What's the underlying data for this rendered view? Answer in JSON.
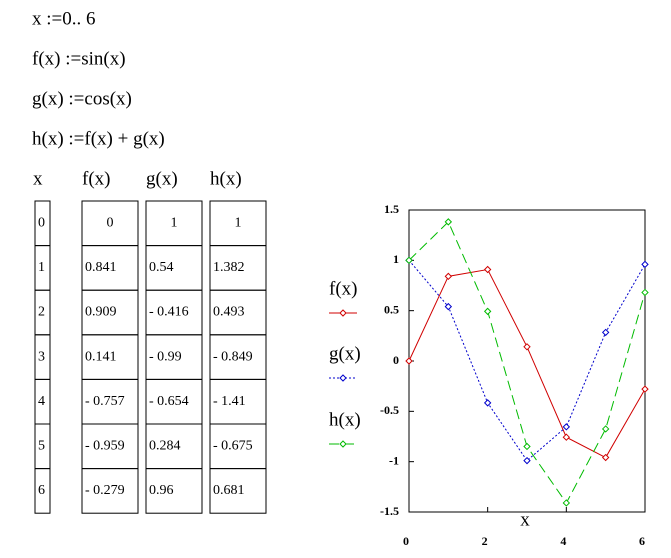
{
  "definitions": [
    "x :=0.. 6",
    "f(x) :=sin(x)",
    "g(x) :=cos(x)",
    "h(x) :=f(x) + g(x)"
  ],
  "table": {
    "headers": [
      "x",
      "f(x)",
      "g(x)",
      "h(x)"
    ],
    "columns": [
      [
        "0",
        "1",
        "2",
        "3",
        "4",
        "5",
        "6"
      ],
      [
        "0",
        "0.841",
        "0.909",
        "0.141",
        "- 0.757",
        "- 0.959",
        "- 0.279"
      ],
      [
        "1",
        "0.54",
        "- 0.416",
        "- 0.99",
        "- 0.654",
        "0.284",
        "0.96"
      ],
      [
        "1",
        "1.382",
        "0.493",
        "- 0.849",
        "- 1.41",
        "- 0.675",
        "0.681"
      ]
    ]
  },
  "chart_data": {
    "type": "line",
    "xlabel": "x",
    "x": [
      0,
      1,
      2,
      3,
      4,
      5,
      6
    ],
    "series": [
      {
        "name": "f(x)",
        "color": "#d00000",
        "dash": "solid",
        "values": [
          0,
          0.841,
          0.909,
          0.141,
          -0.757,
          -0.959,
          -0.279
        ]
      },
      {
        "name": "g(x)",
        "color": "#0000cc",
        "dash": "dotted",
        "values": [
          1,
          0.54,
          -0.416,
          -0.99,
          -0.654,
          0.284,
          0.96
        ]
      },
      {
        "name": "h(x)",
        "color": "#00bb00",
        "dash": "dashed",
        "values": [
          1,
          1.382,
          0.493,
          -0.849,
          -1.41,
          -0.675,
          0.681
        ]
      }
    ],
    "xlim": [
      0,
      6
    ],
    "xticks": [
      0,
      2,
      4,
      6
    ],
    "ylim": [
      -1.5,
      1.5
    ],
    "yticks": [
      -1.5,
      -1,
      -0.5,
      0,
      0.5,
      1,
      1.5
    ]
  }
}
